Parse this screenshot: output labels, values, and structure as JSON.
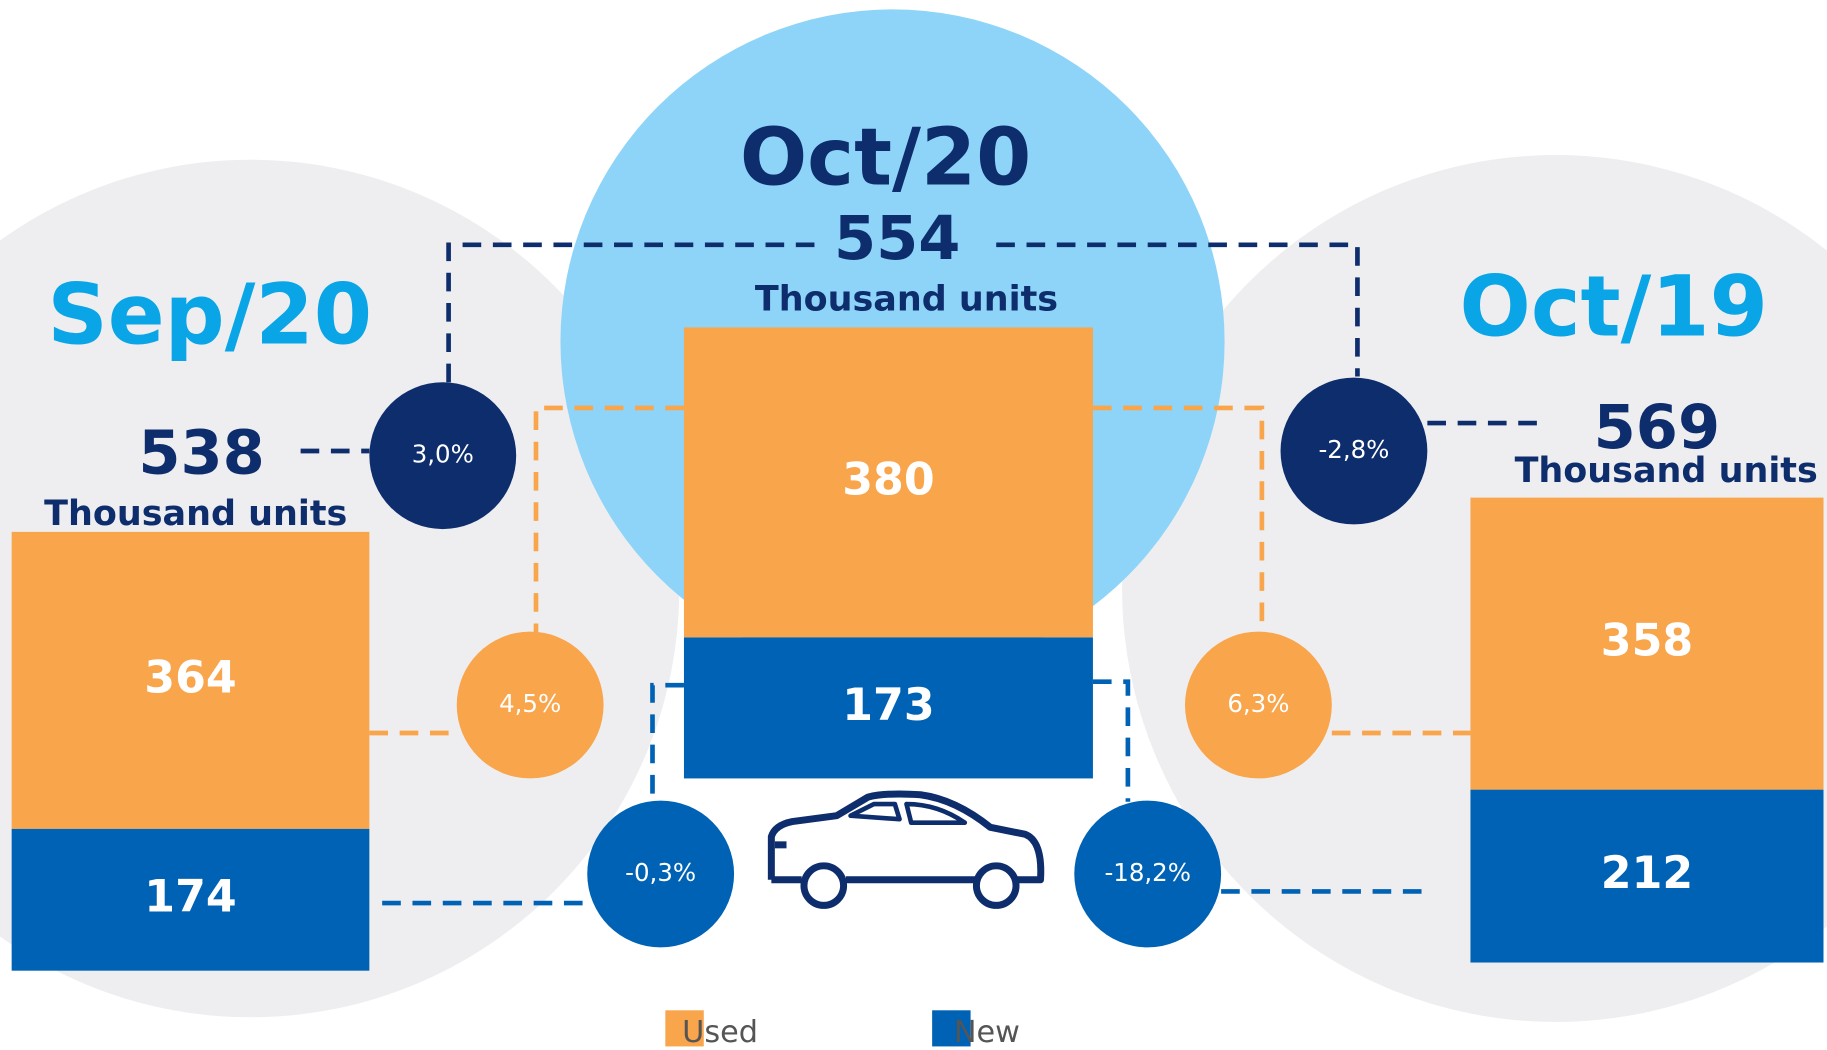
{
  "chart_data": {
    "type": "bar",
    "stacked": true,
    "categories": [
      "Sep/20",
      "Oct/20",
      "Oct/19"
    ],
    "totals": [
      538,
      554,
      569
    ],
    "total_unit": "Thousand units",
    "series": [
      {
        "name": "Used",
        "color": "#f8a54b",
        "values": [
          364,
          380,
          358
        ],
        "change_values": [
          4.5,
          6.3
        ],
        "change_labels": [
          "4,5%",
          "6,3%"
        ]
      },
      {
        "name": "New",
        "color": "#0062b4",
        "values": [
          174,
          173,
          212
        ],
        "change_values": [
          -0.3,
          -18.2
        ],
        "change_labels": [
          "-0,3%",
          "-18,2%"
        ]
      }
    ],
    "total_changes": {
      "values": [
        3.0,
        -2.8
      ],
      "value_labels": [
        "3,0%",
        "-2,8%"
      ],
      "color": "#0d2d6c"
    }
  }
}
